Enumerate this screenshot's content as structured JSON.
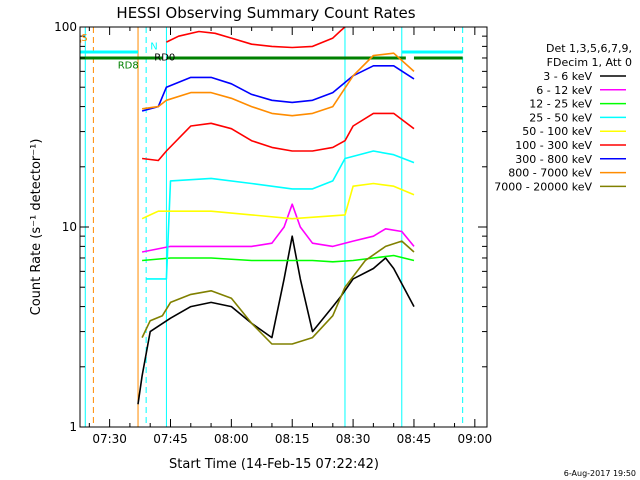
{
  "chart_data": {
    "type": "line",
    "title": "HESSI Observing Summary Count Rates",
    "xlabel": "Start Time (14-Feb-15 07:22:42)",
    "ylabel": "Count Rate (s⁻¹ detector⁻¹)",
    "y_scale": "log",
    "ylim": [
      1,
      100
    ],
    "y_ticks": [
      "1",
      "10",
      "100"
    ],
    "x_range": [
      "07:22:42",
      "09:03:00"
    ],
    "x_ticks": [
      "07:30",
      "07:45",
      "08:00",
      "08:15",
      "08:30",
      "08:45",
      "09:00"
    ],
    "legend_header": [
      "Det 1,3,5,6,7,9,",
      "FDecim 1, Att 0"
    ],
    "legend_position": "right",
    "series": [
      {
        "name": "3 - 6 keV",
        "color": "#000000",
        "x": [
          "07:37",
          "07:38",
          "07:40",
          "07:45",
          "07:50",
          "07:55",
          "08:00",
          "08:05",
          "08:10",
          "08:13",
          "08:15",
          "08:17",
          "08:20",
          "08:25",
          "08:27",
          "08:30",
          "08:35",
          "08:38",
          "08:40",
          "08:45"
        ],
        "y": [
          1.3,
          1.8,
          3.0,
          3.5,
          4.0,
          4.2,
          4.0,
          3.3,
          2.8,
          5.5,
          9.0,
          5.5,
          3.0,
          4.0,
          4.5,
          5.5,
          6.2,
          7.0,
          6.2,
          4.0
        ]
      },
      {
        "name": "6 - 12 keV",
        "color": "#ff00ff",
        "x": [
          "07:38",
          "07:45",
          "07:55",
          "08:05",
          "08:10",
          "08:13",
          "08:15",
          "08:17",
          "08:20",
          "08:25",
          "08:30",
          "08:35",
          "08:38",
          "08:42",
          "08:45"
        ],
        "y": [
          7.5,
          8.0,
          8.0,
          8.0,
          8.3,
          10.0,
          13.0,
          10.0,
          8.3,
          8.0,
          8.5,
          9.0,
          9.8,
          9.5,
          8.0
        ]
      },
      {
        "name": "12 - 25 keV",
        "color": "#00ff00",
        "x": [
          "07:38",
          "07:45",
          "07:55",
          "08:05",
          "08:15",
          "08:20",
          "08:25",
          "08:30",
          "08:35",
          "08:40",
          "08:45"
        ],
        "y": [
          6.8,
          7.0,
          7.0,
          6.8,
          6.8,
          6.8,
          6.7,
          6.8,
          7.0,
          7.2,
          6.8
        ]
      },
      {
        "name": "25 - 50 keV",
        "color": "#00ffff",
        "x": [
          "07:39",
          "07:44",
          "07:45",
          "07:55",
          "08:05",
          "08:15",
          "08:20",
          "08:25",
          "08:28",
          "08:35",
          "08:40",
          "08:45"
        ],
        "y": [
          5.5,
          5.5,
          17.0,
          17.5,
          16.5,
          15.5,
          15.5,
          17.0,
          22.0,
          24.0,
          23.0,
          21.0
        ]
      },
      {
        "name": "50 - 100 keV",
        "color": "#ffff00",
        "x": [
          "07:38",
          "07:40",
          "07:42",
          "07:45",
          "07:55",
          "08:05",
          "08:15",
          "08:28",
          "08:30",
          "08:35",
          "08:40",
          "08:45"
        ],
        "y": [
          11.0,
          11.5,
          12.0,
          12.0,
          12.0,
          11.5,
          11.0,
          11.5,
          16.0,
          16.5,
          16.0,
          14.5
        ]
      },
      {
        "name": "100 - 300 keV",
        "color": "#ff0000",
        "x": [
          "07:38",
          "07:42",
          "07:44",
          "07:50",
          "07:55",
          "08:00",
          "08:05",
          "08:10",
          "08:15",
          "08:20",
          "08:25",
          "08:28",
          "08:30",
          "08:35",
          "08:40",
          "08:45"
        ],
        "y": [
          22.0,
          21.5,
          24.0,
          32.0,
          33.0,
          31.0,
          27.0,
          25.0,
          24.0,
          24.0,
          25.0,
          27.0,
          32.0,
          37.0,
          37.0,
          31.0
        ]
      },
      {
        "name": "300 - 800 keV",
        "color": "#0000ff",
        "x": [
          "07:38",
          "07:42",
          "07:44",
          "07:50",
          "07:55",
          "08:00",
          "08:05",
          "08:10",
          "08:15",
          "08:20",
          "08:25",
          "08:30",
          "08:35",
          "08:40",
          "08:45"
        ],
        "y": [
          38.0,
          40.0,
          50.0,
          56.0,
          56.0,
          52.0,
          46.0,
          43.0,
          42.0,
          43.0,
          47.0,
          57.0,
          64.0,
          64.0,
          55.0
        ]
      },
      {
        "name": "800 - 7000 keV",
        "color": "#ff8c00",
        "x": [
          "07:38",
          "07:42",
          "07:44",
          "07:50",
          "07:55",
          "08:00",
          "08:05",
          "08:10",
          "08:15",
          "08:20",
          "08:25",
          "08:30",
          "08:35",
          "08:40",
          "08:45"
        ],
        "y": [
          39.0,
          40.0,
          43.0,
          47.0,
          47.0,
          44.0,
          40.0,
          37.0,
          36.0,
          37.0,
          40.0,
          57.0,
          72.0,
          74.0,
          60.0
        ]
      },
      {
        "name": "7000 - 20000 keV",
        "color": "#808000",
        "x": [
          "07:38",
          "07:40",
          "07:43",
          "07:45",
          "07:50",
          "07:55",
          "08:00",
          "08:05",
          "08:10",
          "08:15",
          "08:20",
          "08:25",
          "08:28",
          "08:33",
          "08:38",
          "08:42",
          "08:45"
        ],
        "y": [
          2.8,
          3.4,
          3.6,
          4.2,
          4.6,
          4.8,
          4.4,
          3.3,
          2.6,
          2.6,
          2.8,
          3.6,
          5.0,
          6.8,
          8.0,
          8.5,
          7.5
        ]
      },
      {
        "name": "",
        "color": "#ff0000",
        "x": [
          "07:44",
          "07:47",
          "07:52",
          "07:56",
          "08:00",
          "08:05",
          "08:10",
          "08:15",
          "08:20",
          "08:25",
          "08:27",
          "08:28"
        ],
        "y": [
          84.0,
          90.0,
          95.0,
          93.0,
          88.0,
          82.0,
          80.0,
          79.0,
          80.0,
          88.0,
          96.0,
          102.0
        ]
      }
    ],
    "annotations": [
      {
        "text": "S",
        "x": "07:23",
        "y": 85,
        "color": "#ff8c00"
      },
      {
        "text": "N",
        "x": "07:40",
        "y": 77,
        "color": "#00ffff"
      },
      {
        "text": "RD0",
        "x": "07:41",
        "y": 68,
        "color": "#000000"
      },
      {
        "text": "RD8",
        "x": "07:32",
        "y": 62,
        "color": "#008000"
      }
    ],
    "state_bars": [
      {
        "name": "S",
        "color": "#ff8c00",
        "y": 85,
        "x": [
          "07:22:42",
          "07:23"
        ]
      },
      {
        "name": "N",
        "color": "#00ffff",
        "y": 75,
        "segments": [
          [
            "07:22:42",
            "07:37"
          ],
          [
            "08:42",
            "08:57"
          ]
        ]
      },
      {
        "name": "RD",
        "color": "#008000",
        "y": 70,
        "segments": [
          [
            "07:22:42",
            "07:43"
          ],
          [
            "07:44",
            "08:43"
          ],
          [
            "08:45",
            "08:57"
          ]
        ]
      }
    ],
    "vlines": [
      {
        "x": "07:24",
        "color": "#00ffff",
        "style": "solid"
      },
      {
        "x": "07:26",
        "color": "#ff8c00",
        "style": "dashed"
      },
      {
        "x": "07:37",
        "color": "#ff8c00",
        "style": "solid"
      },
      {
        "x": "07:39",
        "color": "#00ffff",
        "style": "dashed"
      },
      {
        "x": "07:44",
        "color": "#00ffff",
        "style": "solid"
      },
      {
        "x": "08:28",
        "color": "#00ffff",
        "style": "solid"
      },
      {
        "x": "08:42",
        "color": "#00ffff",
        "style": "solid"
      },
      {
        "x": "08:57",
        "color": "#00ffff",
        "style": "dashed"
      }
    ]
  },
  "footer": {
    "timestamp": "6-Aug-2017 19:50"
  }
}
